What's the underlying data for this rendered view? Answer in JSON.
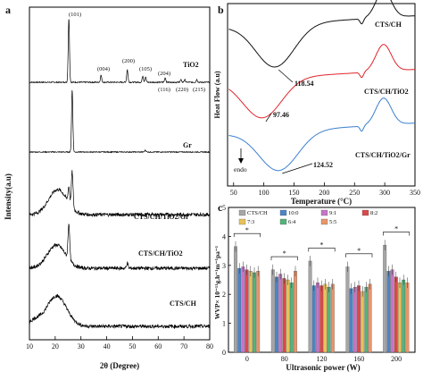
{
  "chart_data": [
    {
      "panel": "a",
      "type": "line",
      "xlabel": "2θ (Degree)",
      "ylabel": "Intensity(a.u)",
      "xlim": [
        10,
        80
      ],
      "xticks": [
        "10",
        "20",
        "30",
        "40",
        "50",
        "60",
        "70",
        "80"
      ],
      "series": [
        {
          "name": "TiO2",
          "peak_labels": [
            "(101)",
            "(004)",
            "(200)",
            "(105)",
            "(204)",
            "(116)",
            "(220)",
            "(215)"
          ],
          "peaks_x": [
            25.3,
            37.8,
            48.0,
            54.0,
            62.7,
            68.8,
            70.3,
            75.0
          ]
        },
        {
          "name": "Gr",
          "peaks_x": [
            26.6,
            55.0
          ]
        },
        {
          "name": "CTS/CH/TiO2/Gr",
          "peaks_x": [
            21.0,
            25.3,
            26.6
          ]
        },
        {
          "name": "CTS/CH/TiO2",
          "peaks_x": [
            20.5,
            25.3,
            48.0
          ]
        },
        {
          "name": "CTS/CH",
          "peaks_x": [
            20.5
          ]
        }
      ]
    },
    {
      "panel": "b",
      "type": "line",
      "xlabel": "Temperature (°C)",
      "ylabel": "Heat Flow (a.u)",
      "xlim": [
        40,
        350
      ],
      "xticks": [
        "50",
        "100",
        "150",
        "200",
        "250",
        "300",
        "350"
      ],
      "endo_label": "endo",
      "series": [
        {
          "name": "CTS/CH",
          "peak_x": 118.54,
          "peak_label": "118.54",
          "color": "#111111"
        },
        {
          "name": "CTS/CH/TiO2",
          "peak_x": 97.46,
          "peak_label": "97.46",
          "color": "#e0262b"
        },
        {
          "name": "CTS/CH/TiO2/Gr",
          "peak_x": 124.52,
          "peak_label": "124.52",
          "color": "#3b7fd0"
        }
      ]
    },
    {
      "panel": "c",
      "type": "bar",
      "xlabel": "Ultrasonic power (W)",
      "ylabel": "WVP× 10⁻¹¹g.h⁻¹m⁻¹pa⁻¹",
      "ylim": [
        0,
        5
      ],
      "yticks": [
        "0",
        "1",
        "2",
        "3",
        "4",
        "5"
      ],
      "categories": [
        "0",
        "80",
        "120",
        "160",
        "200"
      ],
      "significance": [
        "*",
        "*",
        "*",
        "*",
        "*"
      ],
      "series": [
        {
          "name": "CTS/CH",
          "color": "#a6a6a6",
          "values": [
            3.65,
            2.85,
            3.15,
            2.95,
            3.7
          ]
        },
        {
          "name": "10:0",
          "color": "#4e84c4",
          "values": [
            2.9,
            2.6,
            2.3,
            2.2,
            2.8
          ]
        },
        {
          "name": "9:1",
          "color": "#c774c8",
          "values": [
            2.95,
            2.7,
            2.4,
            2.25,
            2.85
          ]
        },
        {
          "name": "8:2",
          "color": "#d94a4a",
          "values": [
            2.85,
            2.55,
            2.3,
            2.3,
            2.6
          ]
        },
        {
          "name": "7:3",
          "color": "#e8c25a",
          "values": [
            2.8,
            2.5,
            2.35,
            2.1,
            2.4
          ]
        },
        {
          "name": "6:4",
          "color": "#55b27a",
          "values": [
            2.75,
            2.4,
            2.25,
            2.25,
            2.5
          ]
        },
        {
          "name": "5:5",
          "color": "#e8956a",
          "values": [
            2.8,
            2.8,
            2.35,
            2.35,
            2.4
          ]
        }
      ]
    }
  ],
  "panel_labels": {
    "a": "a",
    "b": "b",
    "c": "c"
  }
}
